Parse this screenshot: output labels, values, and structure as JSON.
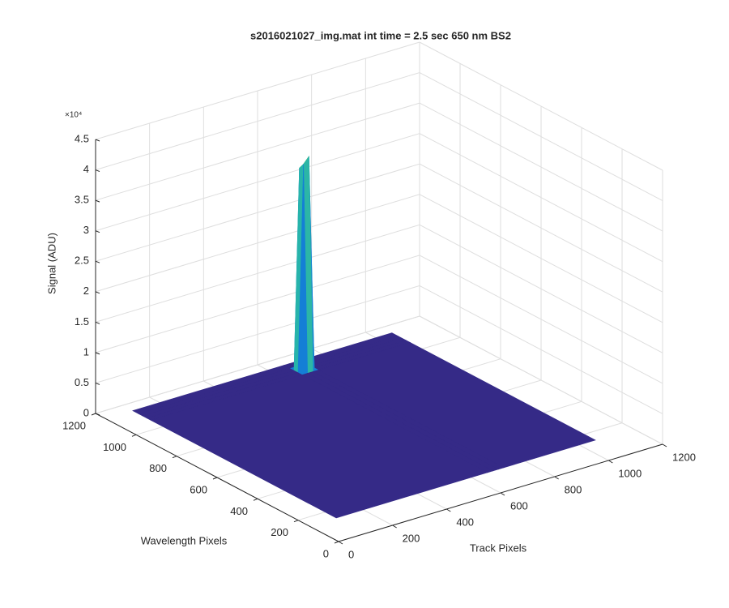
{
  "chart_data": {
    "type": "surface",
    "title": "s2016021027_img.mat int time = 2.5 sec  650 nm BS2",
    "xlabel": "Track Pixels",
    "ylabel": "Wavelength Pixels",
    "zlabel": "Signal (ADU)",
    "x": [
      100,
      660,
      680,
      700,
      720,
      1060
    ],
    "y": [
      145,
      1060,
      1080,
      1100,
      1120,
      1150
    ],
    "z": [
      [
        0,
        0,
        0,
        0,
        0,
        0
      ],
      [
        0,
        0,
        0,
        0,
        0,
        0
      ],
      [
        0,
        0,
        34000,
        35000,
        0,
        0
      ],
      [
        0,
        0,
        33000,
        32000,
        0,
        0
      ],
      [
        0,
        0,
        0,
        0,
        0,
        0
      ],
      [
        0,
        0,
        0,
        0,
        0,
        0
      ]
    ],
    "xlim": [
      0,
      1200
    ],
    "xticks": [
      0,
      200,
      400,
      600,
      800,
      1000,
      1200
    ],
    "ylim": [
      0,
      1200
    ],
    "yticks": [
      0,
      200,
      400,
      600,
      800,
      1000,
      1200
    ],
    "zlim": [
      0,
      45000
    ],
    "zticks": [
      0,
      {
        "value": 5000,
        "label": "0.5"
      },
      {
        "value": 10000,
        "label": "1"
      },
      {
        "value": 15000,
        "label": "1.5"
      },
      {
        "value": 20000,
        "label": "2"
      },
      {
        "value": 25000,
        "label": "2.5"
      },
      {
        "value": 30000,
        "label": "3"
      },
      {
        "value": 35000,
        "label": "3.5"
      },
      {
        "value": 40000,
        "label": "4"
      },
      {
        "value": 45000,
        "label": "4.5"
      }
    ],
    "z_exponent_label": "×10⁴",
    "colormap": [
      "#352a87",
      "#0f5cdd",
      "#1481d6",
      "#06a4ca",
      "#2eb7a4",
      "#87bf77",
      "#d1bb59",
      "#fec832",
      "#f9fb0e"
    ],
    "grid": true
  }
}
